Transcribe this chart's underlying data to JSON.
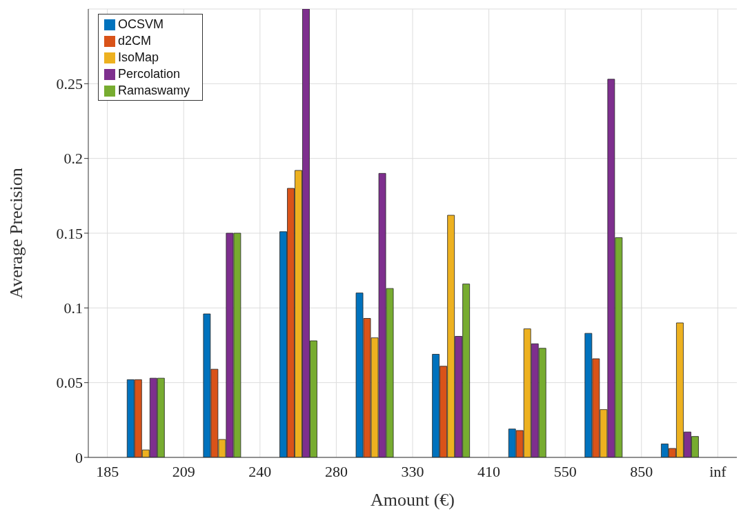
{
  "chart_data": {
    "type": "bar",
    "xlabel": "Amount (€)",
    "ylabel": "Average Precision",
    "categories": [
      "185",
      null,
      "209",
      null,
      "240",
      null,
      "280",
      null,
      "330",
      null,
      "410",
      null,
      "550",
      null,
      "850",
      null,
      "inf"
    ],
    "ylim": [
      0,
      0.3
    ],
    "yticks": [
      0,
      0.05,
      0.1,
      0.15,
      0.2,
      0.25
    ],
    "grid": true,
    "legend": "top left",
    "series": [
      {
        "name": "OCSVM",
        "color": "#0072bd",
        "values": [
          null,
          0.052,
          null,
          0.096,
          null,
          0.151,
          null,
          0.11,
          null,
          0.069,
          null,
          0.019,
          null,
          0.083,
          null,
          0.009,
          null
        ]
      },
      {
        "name": "d2CM",
        "color": "#d95319",
        "values": [
          null,
          0.052,
          null,
          0.059,
          null,
          0.18,
          null,
          0.093,
          null,
          0.061,
          null,
          0.018,
          null,
          0.066,
          null,
          0.006,
          null
        ]
      },
      {
        "name": "IsoMap",
        "color": "#edb120",
        "values": [
          null,
          0.005,
          null,
          0.012,
          null,
          0.192,
          null,
          0.08,
          null,
          0.162,
          null,
          0.086,
          null,
          0.032,
          null,
          0.09,
          null
        ]
      },
      {
        "name": "Percolation",
        "color": "#7e2f8e",
        "values": [
          null,
          0.053,
          null,
          0.15,
          null,
          0.3,
          null,
          0.19,
          null,
          0.081,
          null,
          0.076,
          null,
          0.253,
          null,
          0.017,
          null
        ]
      },
      {
        "name": "Ramaswamy",
        "color": "#77ac30",
        "values": [
          null,
          0.053,
          null,
          0.15,
          null,
          0.078,
          null,
          0.113,
          null,
          0.116,
          null,
          0.073,
          null,
          0.147,
          null,
          0.014,
          null
        ]
      }
    ]
  }
}
